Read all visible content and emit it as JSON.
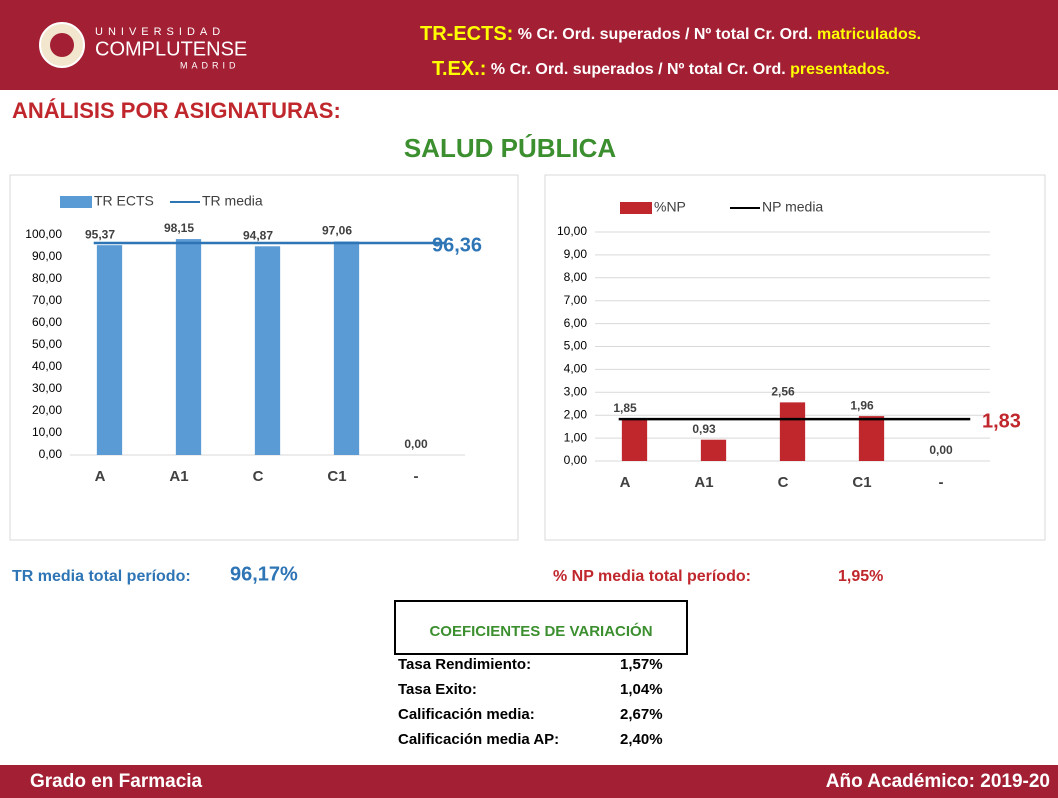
{
  "header": {
    "logo_top": "UNIVERSIDAD",
    "logo_main": "COMPLUTENSE",
    "logo_sub": "MADRID",
    "def1_term": "TR-ECTS:",
    "def1_text": "% Cr. Ord. superados / Nº total Cr. Ord.",
    "def1_highlight": "matriculados.",
    "def2_term": "T.EX.:",
    "def2_text": "% Cr. Ord. superados / Nº total Cr. Ord.",
    "def2_highlight": "presentados."
  },
  "section_title": "ANÁLISIS POR ASIGNATURAS:",
  "subject": "SALUD PÚBLICA",
  "chart_data": [
    {
      "type": "bar",
      "categories": [
        "A",
        "A1",
        "C",
        "C1",
        "-"
      ],
      "series": [
        {
          "name": "TR ECTS",
          "color": "#5b9bd5",
          "values": [
            95.37,
            98.15,
            94.87,
            97.06,
            0
          ],
          "value_labels": [
            "95,37",
            "98,15",
            "94,87",
            "97,06",
            "0,00"
          ]
        }
      ],
      "reference": {
        "name": "TR media",
        "value": 96.36,
        "label": "96,36",
        "color": "#2e75b6",
        "label_color": "#2e75b6"
      },
      "ylim": [
        0,
        100
      ],
      "yticks": [
        {
          "value": 0,
          "label": "0,00"
        },
        {
          "value": 10,
          "label": "10,00"
        },
        {
          "value": 20,
          "label": "20,00"
        },
        {
          "value": 30,
          "label": "30,00"
        },
        {
          "value": 40,
          "label": "40,00"
        },
        {
          "value": 50,
          "label": "50,00"
        },
        {
          "value": 60,
          "label": "60,00"
        },
        {
          "value": 70,
          "label": "70,00"
        },
        {
          "value": 80,
          "label": "80,00"
        },
        {
          "value": 90,
          "label": "90,00"
        },
        {
          "value": 100,
          "label": "100,00"
        }
      ],
      "grid": false
    },
    {
      "type": "bar",
      "categories": [
        "A",
        "A1",
        "C",
        "C1",
        "-"
      ],
      "series": [
        {
          "name": "%NP",
          "color": "#c0272d",
          "values": [
            1.85,
            0.93,
            2.56,
            1.96,
            0
          ],
          "value_labels": [
            "1,85",
            "0,93",
            "2,56",
            "1,96",
            "0,00"
          ]
        }
      ],
      "reference": {
        "name": "NP media",
        "value": 1.83,
        "label": "1,83",
        "color": "#000000",
        "label_color": "#c0272d"
      },
      "ylim": [
        0,
        10
      ],
      "yticks": [
        {
          "value": 0,
          "label": "0,00"
        },
        {
          "value": 1,
          "label": "1,00"
        },
        {
          "value": 2,
          "label": "2,00"
        },
        {
          "value": 3,
          "label": "3,00"
        },
        {
          "value": 4,
          "label": "4,00"
        },
        {
          "value": 5,
          "label": "5,00"
        },
        {
          "value": 6,
          "label": "6,00"
        },
        {
          "value": 7,
          "label": "7,00"
        },
        {
          "value": 8,
          "label": "8,00"
        },
        {
          "value": 9,
          "label": "9,00"
        },
        {
          "value": 10,
          "label": "10,00"
        }
      ],
      "grid": true
    }
  ],
  "totals": {
    "tr_label": "TR media total período:",
    "tr_value": "96,17%",
    "np_label": "% NP media total período:",
    "np_value": "1,95%"
  },
  "coefficients": {
    "title": "COEFICIENTES DE VARIACIÓN",
    "rows": [
      [
        "Tasa Rendimiento:",
        "1,57%"
      ],
      [
        "Tasa Exito:",
        "1,04%"
      ],
      [
        "Calificación media:",
        "2,67%"
      ],
      [
        "Calificación media AP:",
        "2,40%"
      ]
    ]
  },
  "footer": {
    "left": "Grado en Farmacia",
    "right": "Año Académico: 2019-20"
  }
}
